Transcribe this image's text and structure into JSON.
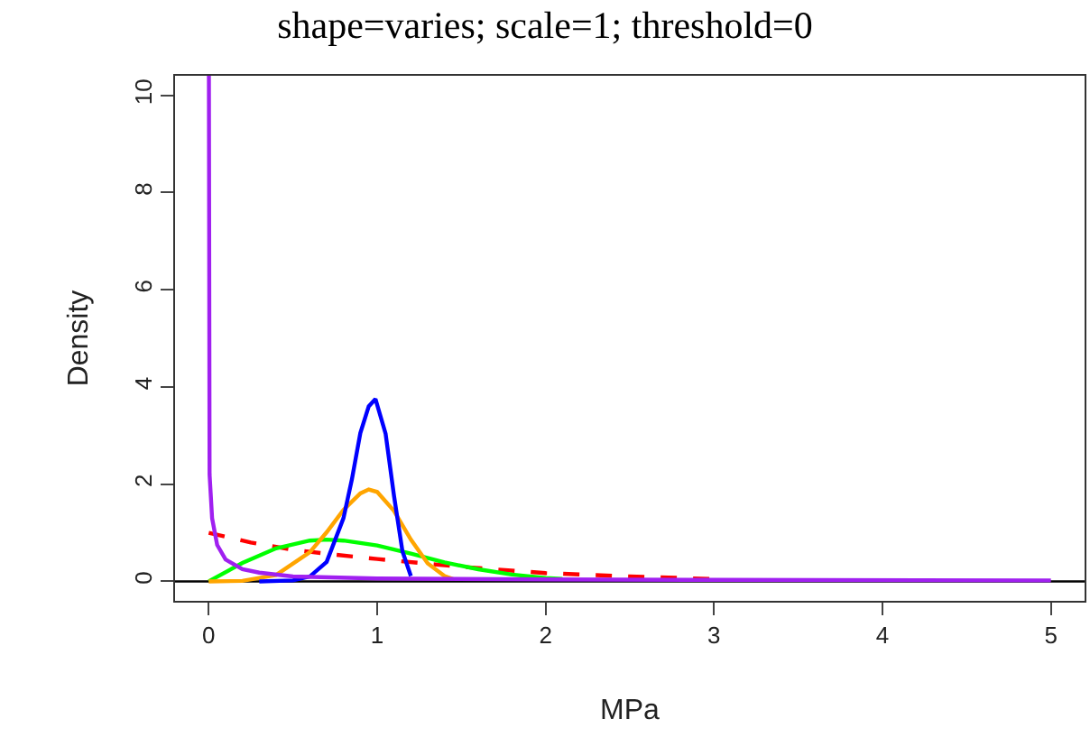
{
  "chart_data": {
    "type": "line",
    "title": "shape=varies; scale=1; threshold=0",
    "xlabel": "MPa",
    "ylabel": "Density",
    "xlim": [
      -0.2,
      5.2
    ],
    "xticks": [
      0,
      1,
      2,
      3,
      4,
      5
    ],
    "ylim": [
      -0.4,
      10.4
    ],
    "yticks": [
      0,
      2,
      4,
      6,
      8,
      10
    ],
    "grid": false,
    "marker": "none",
    "ref_lines": [
      {
        "axis": "y",
        "value": 0,
        "color": "#000000"
      }
    ],
    "series": [
      {
        "color": "#ff0000",
        "line_style": "dashed",
        "x": [
          0,
          0.25,
          0.5,
          0.75,
          1,
          1.5,
          2,
          2.5,
          3
        ],
        "values": [
          1.0,
          0.8,
          0.65,
          0.55,
          0.46,
          0.3,
          0.17,
          0.1,
          0.05
        ]
      },
      {
        "color": "#00ff00",
        "x": [
          0,
          0.2,
          0.4,
          0.6,
          0.7,
          0.8,
          1.0,
          1.2,
          1.4,
          1.6,
          1.8,
          2.0,
          2.1
        ],
        "values": [
          0,
          0.38,
          0.68,
          0.84,
          0.86,
          0.84,
          0.74,
          0.57,
          0.39,
          0.25,
          0.14,
          0.07,
          0.05
        ]
      },
      {
        "color": "#ffa500",
        "x": [
          0,
          0.2,
          0.4,
          0.6,
          0.7,
          0.8,
          0.9,
          0.95,
          1.0,
          1.1,
          1.2,
          1.3,
          1.4,
          1.45
        ],
        "values": [
          0,
          0.01,
          0.13,
          0.6,
          1.01,
          1.47,
          1.81,
          1.89,
          1.84,
          1.45,
          0.86,
          0.37,
          0.11,
          0.05
        ]
      },
      {
        "color": "#0000ff",
        "x": [
          0.3,
          0.5,
          0.6,
          0.7,
          0.8,
          0.85,
          0.9,
          0.95,
          0.99,
          1.05,
          1.1,
          1.15,
          1.2
        ],
        "values": [
          0,
          0.02,
          0.1,
          0.4,
          1.3,
          2.1,
          3.05,
          3.6,
          3.75,
          3.04,
          1.76,
          0.62,
          0.11
        ]
      },
      {
        "color": "#a020f0",
        "x": [
          0.001,
          0.005,
          0.02,
          0.05,
          0.1,
          0.2,
          0.3,
          0.5,
          1,
          2,
          3,
          5
        ],
        "values": [
          10.4,
          2.2,
          1.3,
          0.75,
          0.45,
          0.25,
          0.18,
          0.1,
          0.06,
          0.04,
          0.03,
          0.02
        ]
      }
    ]
  }
}
